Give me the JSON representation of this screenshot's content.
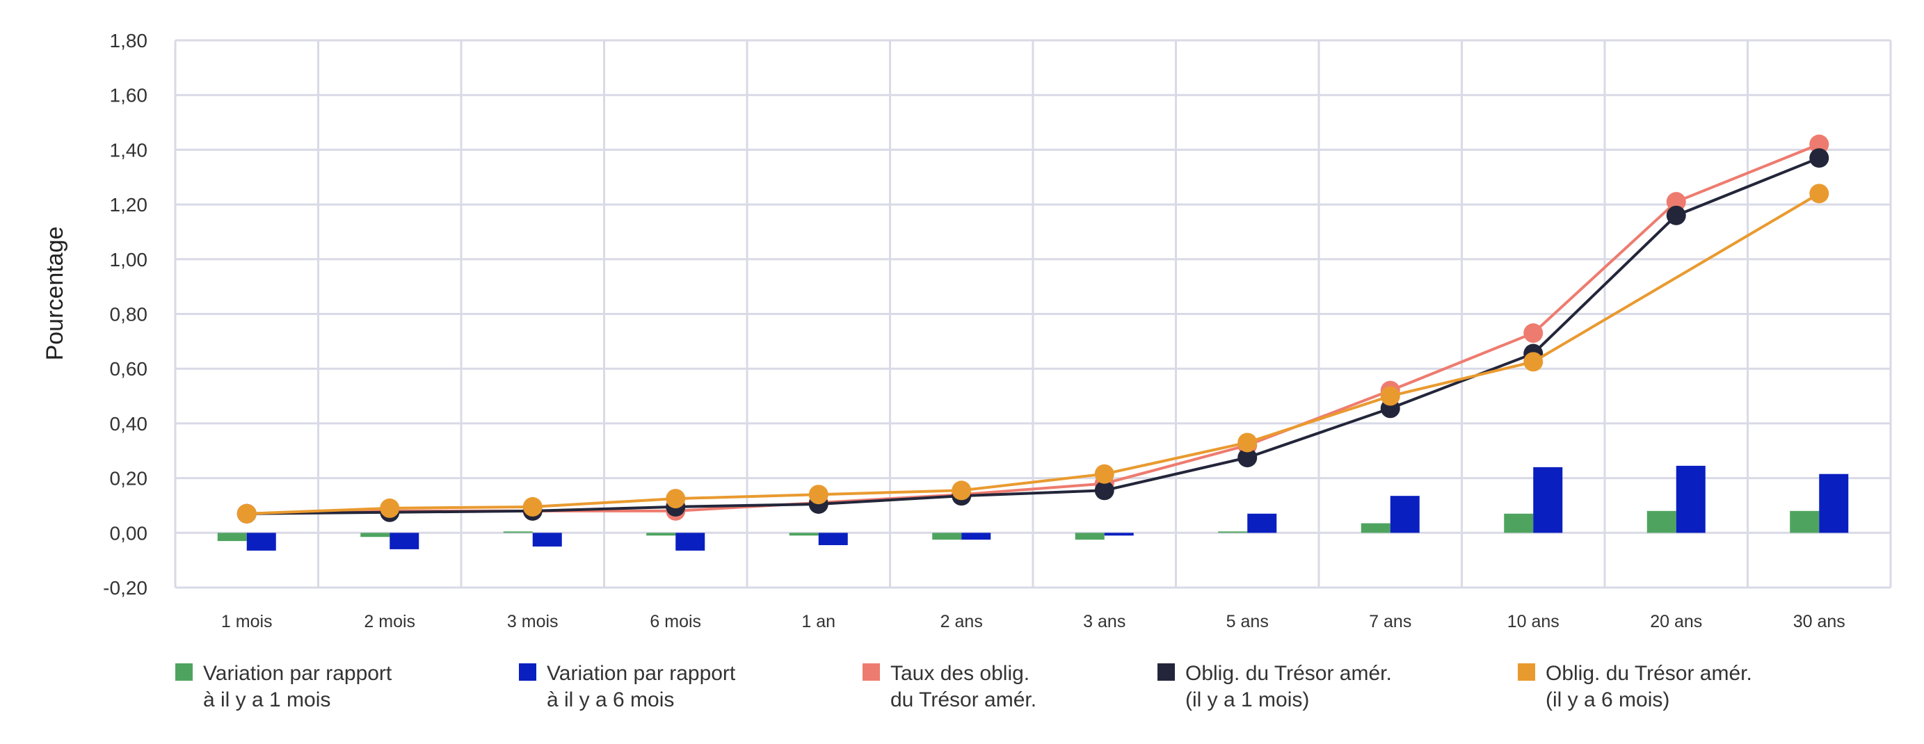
{
  "chart_data": {
    "type": "bar+line",
    "title": "",
    "xlabel": "",
    "ylabel": "Pourcentage",
    "categories": [
      "1 mois",
      "2 mois",
      "3 mois",
      "6 mois",
      "1 an",
      "2 ans",
      "3 ans",
      "5 ans",
      "7 ans",
      "10 ans",
      "20 ans",
      "30 ans"
    ],
    "ylim": [
      -0.2,
      1.8
    ],
    "yticks": [
      -0.2,
      0.0,
      0.2,
      0.4,
      0.6,
      0.8,
      1.0,
      1.2,
      1.4,
      1.6,
      1.8
    ],
    "ytick_labels": [
      "-0,20",
      "0,00",
      "0,20",
      "0,40",
      "0,60",
      "0,80",
      "1,00",
      "1,20",
      "1,40",
      "1,60",
      "1,80"
    ],
    "grid": true,
    "legend_position": "bottom",
    "bar_series": [
      {
        "name": "Variation par rapport à il y a 1 mois",
        "legend_lines": [
          "Variation par rapport",
          "à il y a 1 mois"
        ],
        "color": "#4ea45f",
        "values": [
          -0.03,
          -0.015,
          0.005,
          -0.01,
          -0.01,
          -0.025,
          -0.025,
          0.005,
          0.035,
          0.07,
          0.08,
          0.08
        ]
      },
      {
        "name": "Variation par rapport à il y a 6 mois",
        "legend_lines": [
          "Variation par rapport",
          "à il y a 6 mois"
        ],
        "color": "#0a1fbf",
        "values": [
          -0.065,
          -0.06,
          -0.05,
          -0.065,
          -0.045,
          -0.025,
          -0.01,
          0.07,
          0.135,
          0.24,
          0.245,
          0.215
        ]
      }
    ],
    "line_series": [
      {
        "name": "Taux des oblig. du Trésor amér.",
        "legend_lines": [
          "Taux des oblig.",
          "du Trésor amér."
        ],
        "color": "#ee7b6f",
        "values": [
          0.07,
          0.08,
          0.08,
          0.08,
          0.11,
          0.14,
          0.18,
          0.32,
          0.52,
          0.73,
          1.21,
          1.42
        ]
      },
      {
        "name": "Oblig. du Trésor amér. (il y a 1 mois)",
        "legend_lines": [
          "Oblig. du Trésor amér.",
          "(il y a 1 mois)"
        ],
        "color": "#23263a",
        "values": [
          0.07,
          0.075,
          0.08,
          0.095,
          0.105,
          0.135,
          0.155,
          0.275,
          0.455,
          0.655,
          1.16,
          1.37
        ]
      },
      {
        "name": "Oblig. du Trésor amér. (il y a 6 mois)",
        "legend_lines": [
          "Oblig. du Trésor amér.",
          "(il y a 6 mois)"
        ],
        "color": "#e99a2f",
        "values": [
          0.07,
          0.09,
          0.095,
          0.125,
          0.14,
          0.155,
          0.215,
          0.33,
          0.5,
          0.625,
          null,
          1.24
        ]
      }
    ]
  }
}
